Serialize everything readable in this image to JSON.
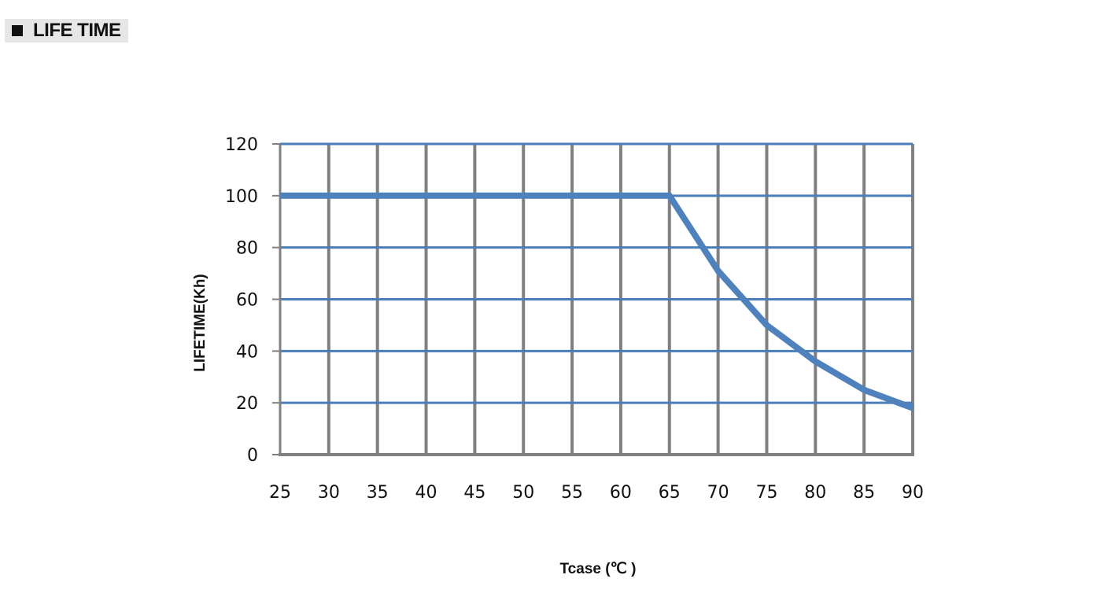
{
  "header": {
    "title": "LIFE TIME",
    "icon": "square-bullet-icon"
  },
  "colors": {
    "grid_horizontal": "#4a7ebb",
    "grid_vertical": "#808080",
    "series_line": "#4f81bd",
    "text": "#111111",
    "header_bg": "#e6e6e6"
  },
  "chart_data": {
    "type": "line",
    "title": "",
    "xlabel": "Tcase (℃ )",
    "ylabel": "LIFETIME(Kh)",
    "x_ticks": [
      25,
      30,
      35,
      40,
      45,
      50,
      55,
      60,
      65,
      70,
      75,
      80,
      85,
      90
    ],
    "y_ticks": [
      0,
      20,
      40,
      60,
      80,
      100,
      120
    ],
    "xlim": [
      25,
      90
    ],
    "ylim": [
      0,
      120
    ],
    "grid": true,
    "legend": "none",
    "series": [
      {
        "x": [
          25,
          30,
          35,
          40,
          45,
          50,
          55,
          60,
          65,
          70,
          75,
          80,
          85,
          90
        ],
        "y": [
          100,
          100,
          100,
          100,
          100,
          100,
          100,
          100,
          100,
          71,
          50,
          36,
          25,
          18
        ]
      }
    ]
  }
}
